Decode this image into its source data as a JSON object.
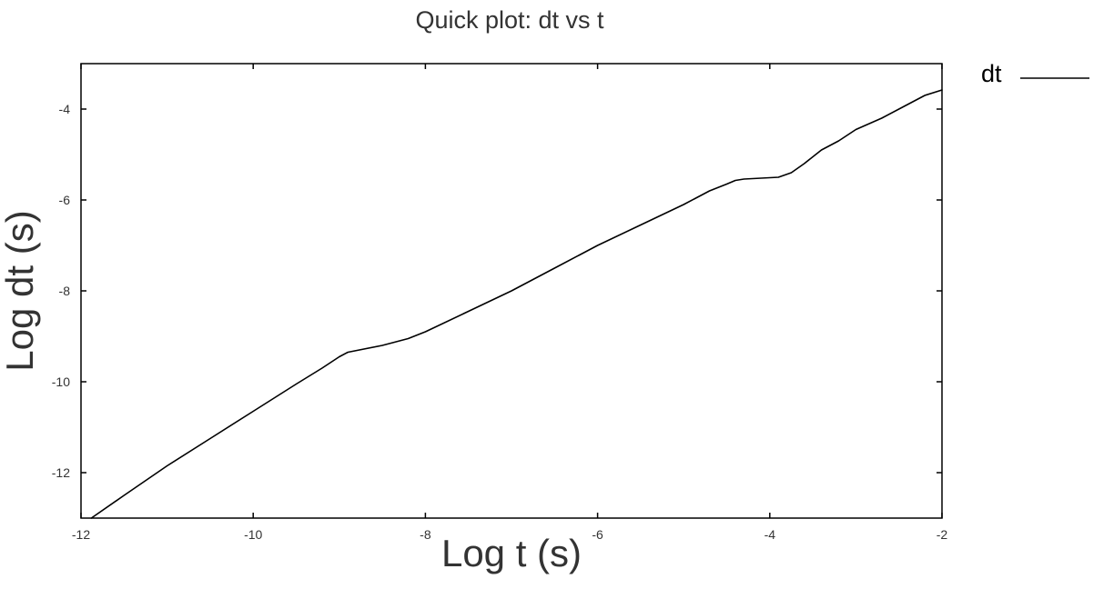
{
  "chart_data": {
    "type": "line",
    "title": "Quick plot: dt vs t",
    "xlabel": "Log t (s)",
    "ylabel": "Log dt (s)",
    "xlim": [
      -12,
      -2
    ],
    "ylim": [
      -13,
      -3
    ],
    "xticks": [
      "-12",
      "-10",
      "-8",
      "-6",
      "-4",
      "-2"
    ],
    "yticks": [
      "-4",
      "-6",
      "-8",
      "-10",
      "-12"
    ],
    "grid": false,
    "legend_position": "right",
    "series": [
      {
        "name": "dt",
        "color": "#000000",
        "x": [
          -11.88,
          -11.5,
          -11.0,
          -10.5,
          -10.0,
          -9.5,
          -9.2,
          -9.0,
          -8.9,
          -8.5,
          -8.2,
          -8.0,
          -7.5,
          -7.0,
          -6.5,
          -6.0,
          -5.5,
          -5.0,
          -4.7,
          -4.5,
          -4.4,
          -4.3,
          -4.1,
          -3.9,
          -3.75,
          -3.6,
          -3.4,
          -3.2,
          -3.0,
          -2.7,
          -2.4,
          -2.2,
          -2.0
        ],
        "y": [
          -13.0,
          -12.5,
          -11.85,
          -11.25,
          -10.65,
          -10.05,
          -9.7,
          -9.45,
          -9.35,
          -9.2,
          -9.05,
          -8.9,
          -8.45,
          -8.0,
          -7.5,
          -7.0,
          -6.55,
          -6.1,
          -5.8,
          -5.65,
          -5.57,
          -5.54,
          -5.52,
          -5.5,
          -5.4,
          -5.2,
          -4.9,
          -4.7,
          -4.45,
          -4.2,
          -3.9,
          -3.7,
          -3.58
        ]
      }
    ]
  }
}
